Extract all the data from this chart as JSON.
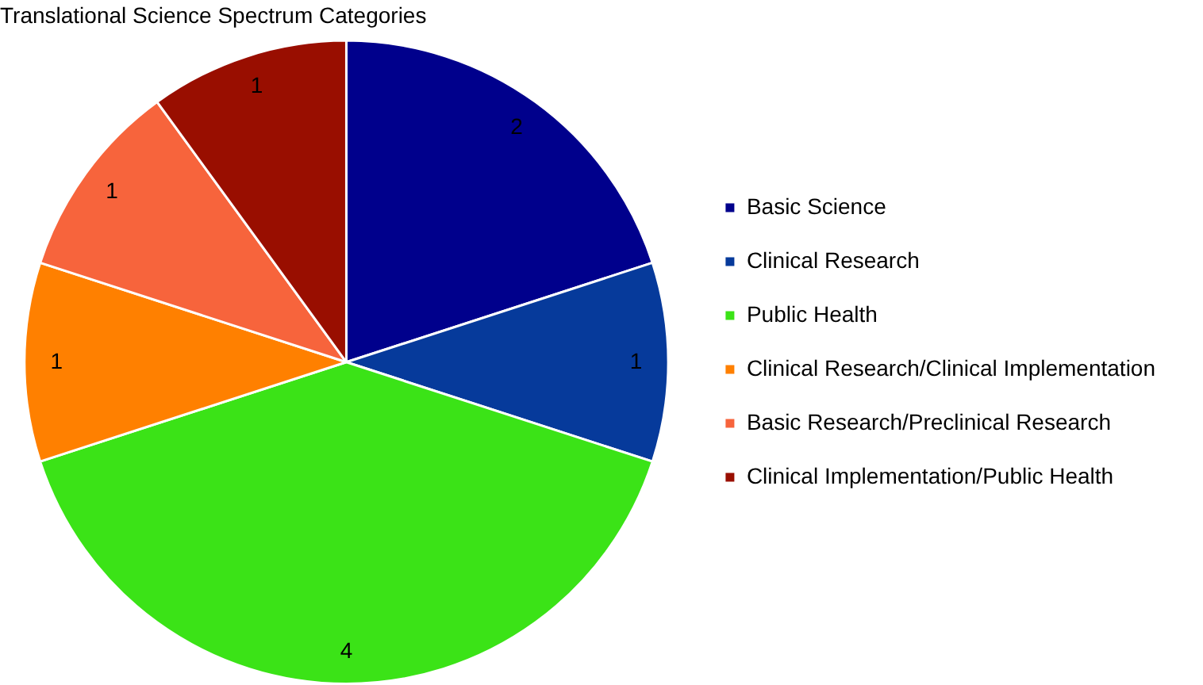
{
  "chart_data": {
    "type": "pie",
    "title": "Translational Science Spectrum Categories",
    "categories": [
      "Basic Science",
      "Clinical Research",
      "Public Health",
      "Clinical Research/Clinical Implementation",
      "Basic Research/Preclinical Research",
      "Clinical Implementation/Public Health"
    ],
    "values": [
      2,
      1,
      4,
      1,
      1,
      1
    ],
    "colors": [
      "#00008c",
      "#063a9b",
      "#3be317",
      "#ff8000",
      "#f7643c",
      "#990e00"
    ],
    "data_labels": true,
    "legend": "right"
  }
}
